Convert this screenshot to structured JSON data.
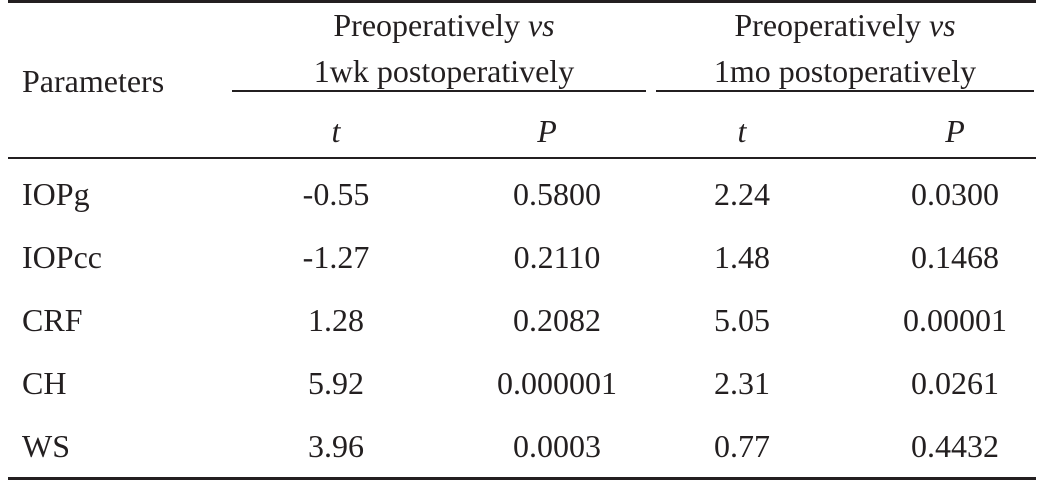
{
  "table": {
    "header": {
      "parameters_label": "Parameters",
      "group1": {
        "line1": "Preoperatively",
        "vs": "vs",
        "line2": "1wk postoperatively"
      },
      "group2": {
        "line1": "Preoperatively",
        "vs": "vs",
        "line2": "1mo postoperatively"
      },
      "sub": [
        "t",
        "P",
        "t",
        "P"
      ]
    },
    "rows": [
      {
        "param": "IOPg",
        "t1": "-0.55",
        "p1": "0.5800",
        "t2": "2.24",
        "p2": "0.0300"
      },
      {
        "param": "IOPcc",
        "t1": "-1.27",
        "p1": "0.2110",
        "t2": "1.48",
        "p2": "0.1468"
      },
      {
        "param": "CRF",
        "t1": "1.28",
        "p1": "0.2082",
        "t2": "5.05",
        "p2": "0.00001"
      },
      {
        "param": "CH",
        "t1": "5.92",
        "p1": "0.000001",
        "t2": "2.31",
        "p2": "0.0261"
      },
      {
        "param": "WS",
        "t1": "3.96",
        "p1": "0.0003",
        "t2": "0.77",
        "p2": "0.4432"
      }
    ]
  }
}
